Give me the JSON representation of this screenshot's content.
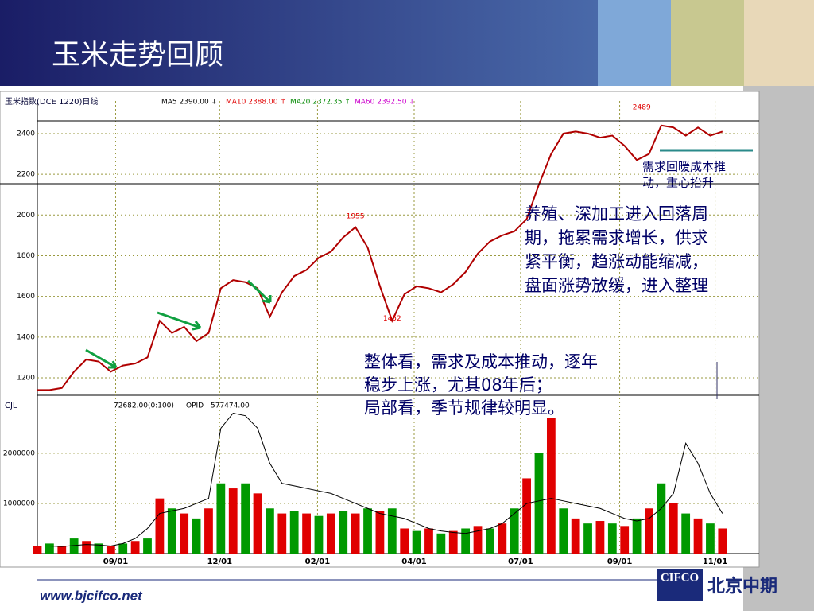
{
  "title": "玉米走势回顾",
  "chart_data": [
    {
      "type": "line",
      "label": "玉米指数(DCE 1220)日线",
      "indicators": [
        {
          "label": "MA5 2390.00 ↓",
          "color": "#000000"
        },
        {
          "label": "MA10 2388.00 ↑",
          "color": "#e00000"
        },
        {
          "label": "MA20 2372.35 ↑",
          "color": "#008800"
        },
        {
          "label": "MA60 2392.50 ↓",
          "color": "#cc00cc"
        }
      ],
      "color": "#b00000",
      "xlim": [
        0,
        59
      ],
      "ylim": [
        1114,
        2521
      ],
      "yticks": [
        1200,
        1400,
        1600,
        1800,
        2000,
        2200,
        2400
      ],
      "values": [
        1140,
        1140,
        1150,
        1230,
        1290,
        1280,
        1230,
        1260,
        1270,
        1300,
        1480,
        1420,
        1450,
        1380,
        1420,
        1640,
        1680,
        1670,
        1640,
        1500,
        1620,
        1700,
        1730,
        1790,
        1820,
        1890,
        1940,
        1840,
        1650,
        1480,
        1610,
        1650,
        1640,
        1620,
        1660,
        1720,
        1810,
        1870,
        1900,
        1920,
        1980,
        2150,
        2300,
        2400,
        2410,
        2400,
        2380,
        2390,
        2340,
        2270,
        2300,
        2440,
        2430,
        2390,
        2430,
        2390,
        2410
      ],
      "annotations": [
        {
          "x": 26,
          "value": 1955
        },
        {
          "x": 29,
          "value": 1452
        },
        {
          "x": 49.4,
          "value": 2489
        }
      ]
    },
    {
      "type": "bar",
      "label": "CJL",
      "xlim": [
        0,
        59
      ],
      "ylim": [
        0,
        3030000
      ],
      "yticks": [
        1000000,
        2000000
      ],
      "xticks": [
        {
          "value": 6.4,
          "label": "09/01"
        },
        {
          "value": 14.9,
          "label": "12/01"
        },
        {
          "value": 22.9,
          "label": "02/01"
        },
        {
          "value": 30.8,
          "label": "04/01"
        },
        {
          "value": 39.5,
          "label": "07/01"
        },
        {
          "value": 47.6,
          "label": "09/01"
        },
        {
          "value": 55.4,
          "label": "11/01"
        }
      ],
      "series": [
        {
          "name": "72682.00(0:100)",
          "colors": [
            "#e00000",
            "#009900"
          ],
          "values": [
            150000,
            200000,
            150000,
            300000,
            250000,
            200000,
            150000,
            200000,
            250000,
            300000,
            1100000,
            900000,
            800000,
            700000,
            900000,
            1400000,
            1300000,
            1400000,
            1200000,
            900000,
            800000,
            850000,
            800000,
            750000,
            800000,
            850000,
            800000,
            900000,
            850000,
            900000,
            500000,
            450000,
            500000,
            400000,
            450000,
            500000,
            550000,
            500000,
            600000,
            900000,
            1500000,
            2000000,
            2700000,
            900000,
            700000,
            600000,
            650000,
            600000,
            550000,
            700000,
            900000,
            1400000,
            1000000,
            800000,
            700000,
            600000,
            500000
          ]
        },
        {
          "name": "OPID",
          "label": "577474.00",
          "color": "#000000",
          "values": [
            150000,
            150000,
            140000,
            160000,
            180000,
            170000,
            150000,
            200000,
            300000,
            500000,
            800000,
            850000,
            900000,
            1000000,
            1100000,
            2500000,
            2800000,
            2750000,
            2500000,
            1800000,
            1400000,
            1350000,
            1300000,
            1250000,
            1200000,
            1100000,
            1000000,
            900000,
            800000,
            750000,
            700000,
            600000,
            500000,
            450000,
            420000,
            400000,
            450000,
            500000,
            600000,
            800000,
            1000000,
            1050000,
            1100000,
            1050000,
            1000000,
            950000,
            900000,
            800000,
            700000,
            650000,
            700000,
            900000,
            1200000,
            2200000,
            1800000,
            1200000,
            800000
          ]
        }
      ]
    }
  ],
  "notes": [
    {
      "lines": [
        "需求回暖成本推",
        "动，重心抬升"
      ]
    },
    {
      "lines": [
        "养殖、深加工进入回落周",
        "期，拖累需求增长，供求",
        "紧平衡，趋涨动能缩减，",
        "盘面涨势放缓，进入整理"
      ]
    },
    {
      "lines": [
        "整体看，需求及成本推动，逐年",
        "稳步上涨，尤其08年后；",
        "局部看，季节规律较明显。"
      ]
    }
  ],
  "footer": {
    "url": "www.bjcifco.net",
    "logo": "CIFCO",
    "company": "北京中期"
  }
}
